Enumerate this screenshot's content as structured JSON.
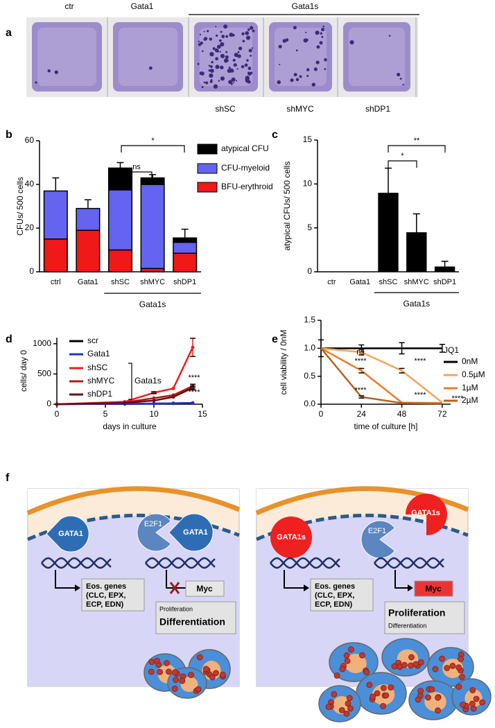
{
  "panel_labels": [
    "a",
    "b",
    "c",
    "d",
    "e",
    "f"
  ],
  "panel_a": {
    "columns": [
      "ctr",
      "Gata1",
      "Gata1s"
    ],
    "row_labels": [
      "shSC",
      "shMYC",
      "shDP1"
    ]
  },
  "chart_data": [
    {
      "type": "bar",
      "y_label": "CFUs/ 500 cells",
      "categories": [
        "ctrl",
        "Gata1",
        "shSC",
        "shMYC",
        "shDP1"
      ],
      "group_label": "Gata1s",
      "series": [
        {
          "name": "atypical CFU",
          "color": "#000000",
          "values": [
            0,
            0,
            10,
            3,
            2
          ],
          "errors": [
            null,
            null,
            2.5,
            1.5,
            4
          ]
        },
        {
          "name": "CFU-myeloid",
          "color": "#6464f0",
          "values": [
            22,
            10,
            27.5,
            38.5,
            5
          ],
          "errors": [
            6,
            4,
            null,
            null,
            null
          ]
        },
        {
          "name": "BFU-erythroid",
          "color": "#f01818",
          "values": [
            15,
            19,
            10,
            1.5,
            8.5
          ],
          "errors": [
            2.5,
            9,
            1,
            2,
            2.5
          ]
        }
      ],
      "ylim": [
        0,
        60
      ],
      "yticks": [
        0,
        20,
        40,
        60
      ],
      "annotations": [
        "ns",
        "*"
      ]
    },
    {
      "type": "bar",
      "y_label": "atypical CFUs/ 500 cells",
      "categories": [
        "ctr",
        "Gata1",
        "shSC",
        "shMYC",
        "shDP1"
      ],
      "group_label": "Gata1s",
      "values": [
        0,
        0,
        9,
        4.5,
        0.6
      ],
      "errors": [
        0,
        0,
        2.8,
        2.1,
        0.6
      ],
      "color": "#000000",
      "ylim": [
        0,
        15
      ],
      "yticks": [
        0,
        5,
        10,
        15
      ],
      "annotations": [
        "*",
        "**"
      ]
    },
    {
      "type": "line",
      "x_label": "days in culture",
      "y_label": "cells/ day 0",
      "markers": true,
      "x": [
        0,
        7,
        10,
        12,
        14
      ],
      "series": [
        {
          "name": "scr",
          "color": "#000000",
          "values": [
            0,
            5,
            10,
            15,
            20
          ],
          "errors": [
            null,
            null,
            null,
            null,
            null
          ]
        },
        {
          "name": "Gata1",
          "color": "#1f2fd0",
          "values": [
            0,
            5,
            10,
            15,
            20
          ],
          "errors": [
            null,
            null,
            null,
            null,
            null
          ]
        },
        {
          "name": "shSC",
          "color": "#e8211d",
          "values": [
            0,
            40,
            190,
            260,
            940
          ],
          "errors": [
            null,
            null,
            15,
            null,
            150
          ]
        },
        {
          "name": "shMYC",
          "color": "#b01a1a",
          "values": [
            0,
            30,
            100,
            150,
            300
          ],
          "errors": [
            null,
            null,
            null,
            null,
            30
          ]
        },
        {
          "name": "shDP1",
          "color": "#6b0f0f",
          "values": [
            0,
            20,
            60,
            120,
            270
          ],
          "errors": [
            null,
            null,
            null,
            null,
            30
          ]
        }
      ],
      "legend_group": "Gata1s",
      "xlim": [
        0,
        15
      ],
      "xticks": [
        0,
        5,
        10,
        15
      ],
      "ylim": [
        0,
        1100
      ],
      "yticks": [
        0,
        500,
        1000
      ],
      "annotations": [
        "****",
        "****"
      ]
    },
    {
      "type": "line",
      "x_label": "time of culture [h]",
      "y_label": "cell viability / 0nM",
      "markers": false,
      "x": [
        0,
        24,
        48,
        72
      ],
      "legend_title": "JQ1",
      "series": [
        {
          "name": "0nM",
          "color": "#000000",
          "values": [
            1,
            1,
            1,
            1
          ],
          "errors": [
            0.15,
            0.06,
            0.1,
            0.07
          ]
        },
        {
          "name": "0.5µM",
          "color": "#f5a55a",
          "values": [
            1,
            0.93,
            0.6,
            0.03
          ],
          "errors": [
            null,
            0.05,
            0.04,
            null
          ]
        },
        {
          "name": "1µM",
          "color": "#f07a2a",
          "values": [
            1,
            0.6,
            0.03,
            0.02
          ],
          "errors": [
            null,
            0.04,
            null,
            null
          ]
        },
        {
          "name": "2µM",
          "color": "#b8621a",
          "values": [
            1,
            0.13,
            0.02,
            0.01
          ],
          "errors": [
            null,
            0.02,
            null,
            null
          ]
        }
      ],
      "xlim": [
        0,
        77
      ],
      "xticks": [
        0,
        24,
        48,
        72
      ],
      "ylim": [
        0,
        1.5
      ],
      "yticks": [
        {
          "value": 0,
          "label": "0.0"
        },
        0.5,
        {
          "value": 1,
          "label": "1.0"
        },
        1.5
      ],
      "annotations": [
        "ns",
        "****",
        "****",
        "****",
        "****",
        "****"
      ]
    }
  ],
  "panel_f": {
    "left": {
      "factors": [
        "GATA1",
        "E2F1",
        "GATA1"
      ],
      "genes": [
        "Eos. genes",
        "(CLC, EPX,",
        "ECP, EDN)"
      ],
      "target": "Myc",
      "outcome": [
        "Proliferation",
        "Differentiation"
      ]
    },
    "right": {
      "factors": [
        "GATA1s",
        "E2F1",
        "GATA1s"
      ],
      "genes": [
        "Eos. genes",
        "(CLC, EPX,",
        "ECP, EDN)"
      ],
      "target": "Myc",
      "outcome": [
        "Proliferation",
        "Differentiation"
      ]
    }
  }
}
